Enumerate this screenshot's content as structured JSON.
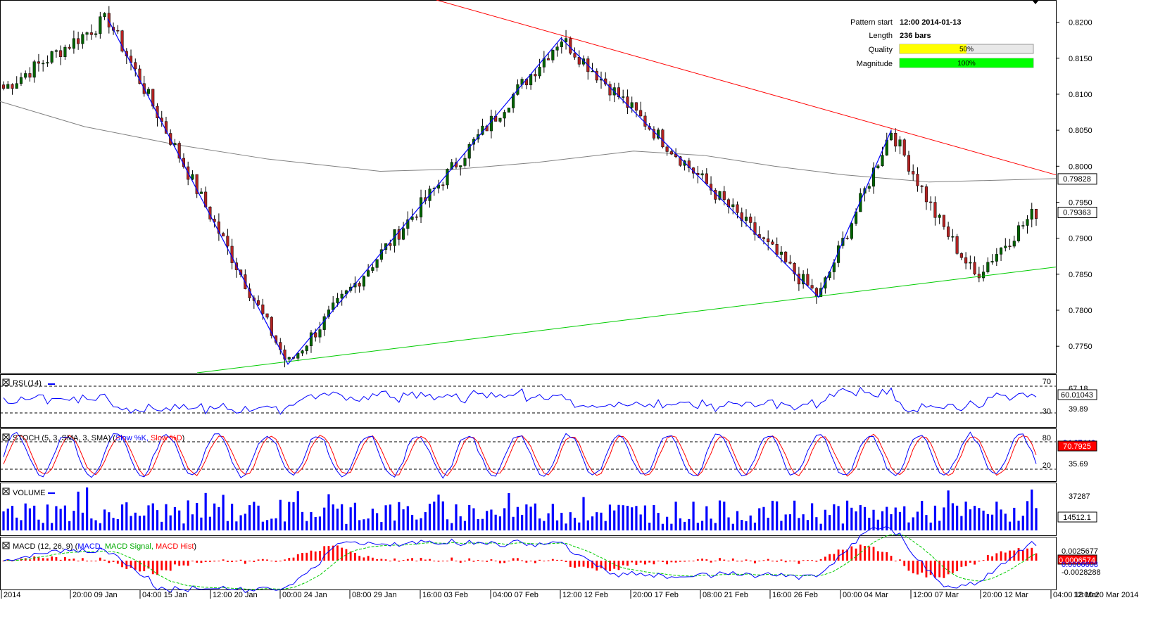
{
  "info": {
    "pattern_start_label": "Pattern start",
    "pattern_start_value": "12:00 2014-01-13",
    "length_label": "Length",
    "length_value": "236 bars",
    "quality_label": "Quality",
    "quality_value": "50%",
    "quality_fraction": 0.5,
    "magnitude_label": "Magnitude",
    "magnitude_value": "100%",
    "magnitude_fraction": 1.0
  },
  "colors": {
    "up_candle": "#006400",
    "down_candle": "#b22222",
    "resistance": "#ff0000",
    "support": "#00cc00",
    "zigzag": "#0000ff",
    "moving_average": "#808080",
    "quality_bar": "#ffff00",
    "magnitude_bar": "#00ff00",
    "rsi_line": "#0000ff",
    "stoch_k": "#0000ff",
    "stoch_d": "#ff0000",
    "volume_bar": "#0000ff",
    "macd_line": "#0000ff",
    "macd_signal": "#00cc00",
    "macd_hist": "#ff0000"
  },
  "chart_data": {
    "type": "candlestick",
    "price_axis": {
      "ylim": [
        0.7715,
        0.8225
      ],
      "ticks": [
        "0.8200",
        "0.8150",
        "0.8100",
        "0.8050",
        "0.8000",
        "0.7950",
        "0.7900",
        "0.7850",
        "0.7800",
        "0.7750"
      ],
      "ma_value_label": "0.79828",
      "ma_value": 0.79828,
      "current_value_label": "0.79363",
      "current_value": 0.79363
    },
    "x_axis": {
      "labels": [
        "2014",
        "20:00 09 Jan",
        "04:00 15 Jan",
        "12:00 20 Jan",
        "00:00 24 Jan",
        "08:00 29 Jan",
        "16:00 03 Feb",
        "04:00 07 Feb",
        "12:00 12 Feb",
        "20:00 17 Feb",
        "08:00 21 Feb",
        "16:00 26 Feb",
        "00:00 04 Mar",
        "12:00 07 Mar",
        "20:00 12 Mar",
        "04:00 18 Mar",
        "12:00 20 Mar 2014"
      ]
    },
    "zigzag_points": [
      0.8205,
      0.7725,
      0.8178,
      0.7818,
      0.805
    ],
    "resistance_line": {
      "from": 0.8255,
      "to": 0.7988
    },
    "support_line": {
      "from": 0.771,
      "to": 0.786
    },
    "indicators": {
      "rsi": {
        "title": "RSI (14)",
        "levels": [
          "70",
          "30"
        ],
        "value_labels": [
          "67.18",
          "39.89"
        ],
        "current_label": "60.01043",
        "ylim": [
          20,
          80
        ]
      },
      "stoch": {
        "title_prefix": "STOCH (5, 3, SMA, 3, SMA)",
        "k_label": "Slow %K,",
        "d_label": "Slow %D",
        "levels": [
          "80",
          "20"
        ],
        "value_labels": [
          "84.67446",
          "35.69"
        ],
        "current_label": "70.7925"
      },
      "volume": {
        "title": "VOLUME",
        "value_label": "37287",
        "current_label": "14512.1",
        "max": 42000
      },
      "macd": {
        "title_prefix": "MACD (12, 26, 9)",
        "macd_label": "MACD,",
        "signal_label": "MACD Signal,",
        "hist_label": "MACD Hist",
        "value_labels": [
          "0.0025677",
          "-0.0028288"
        ],
        "current_label": "0.0006574",
        "current_label_2": "0.0006608"
      }
    }
  }
}
